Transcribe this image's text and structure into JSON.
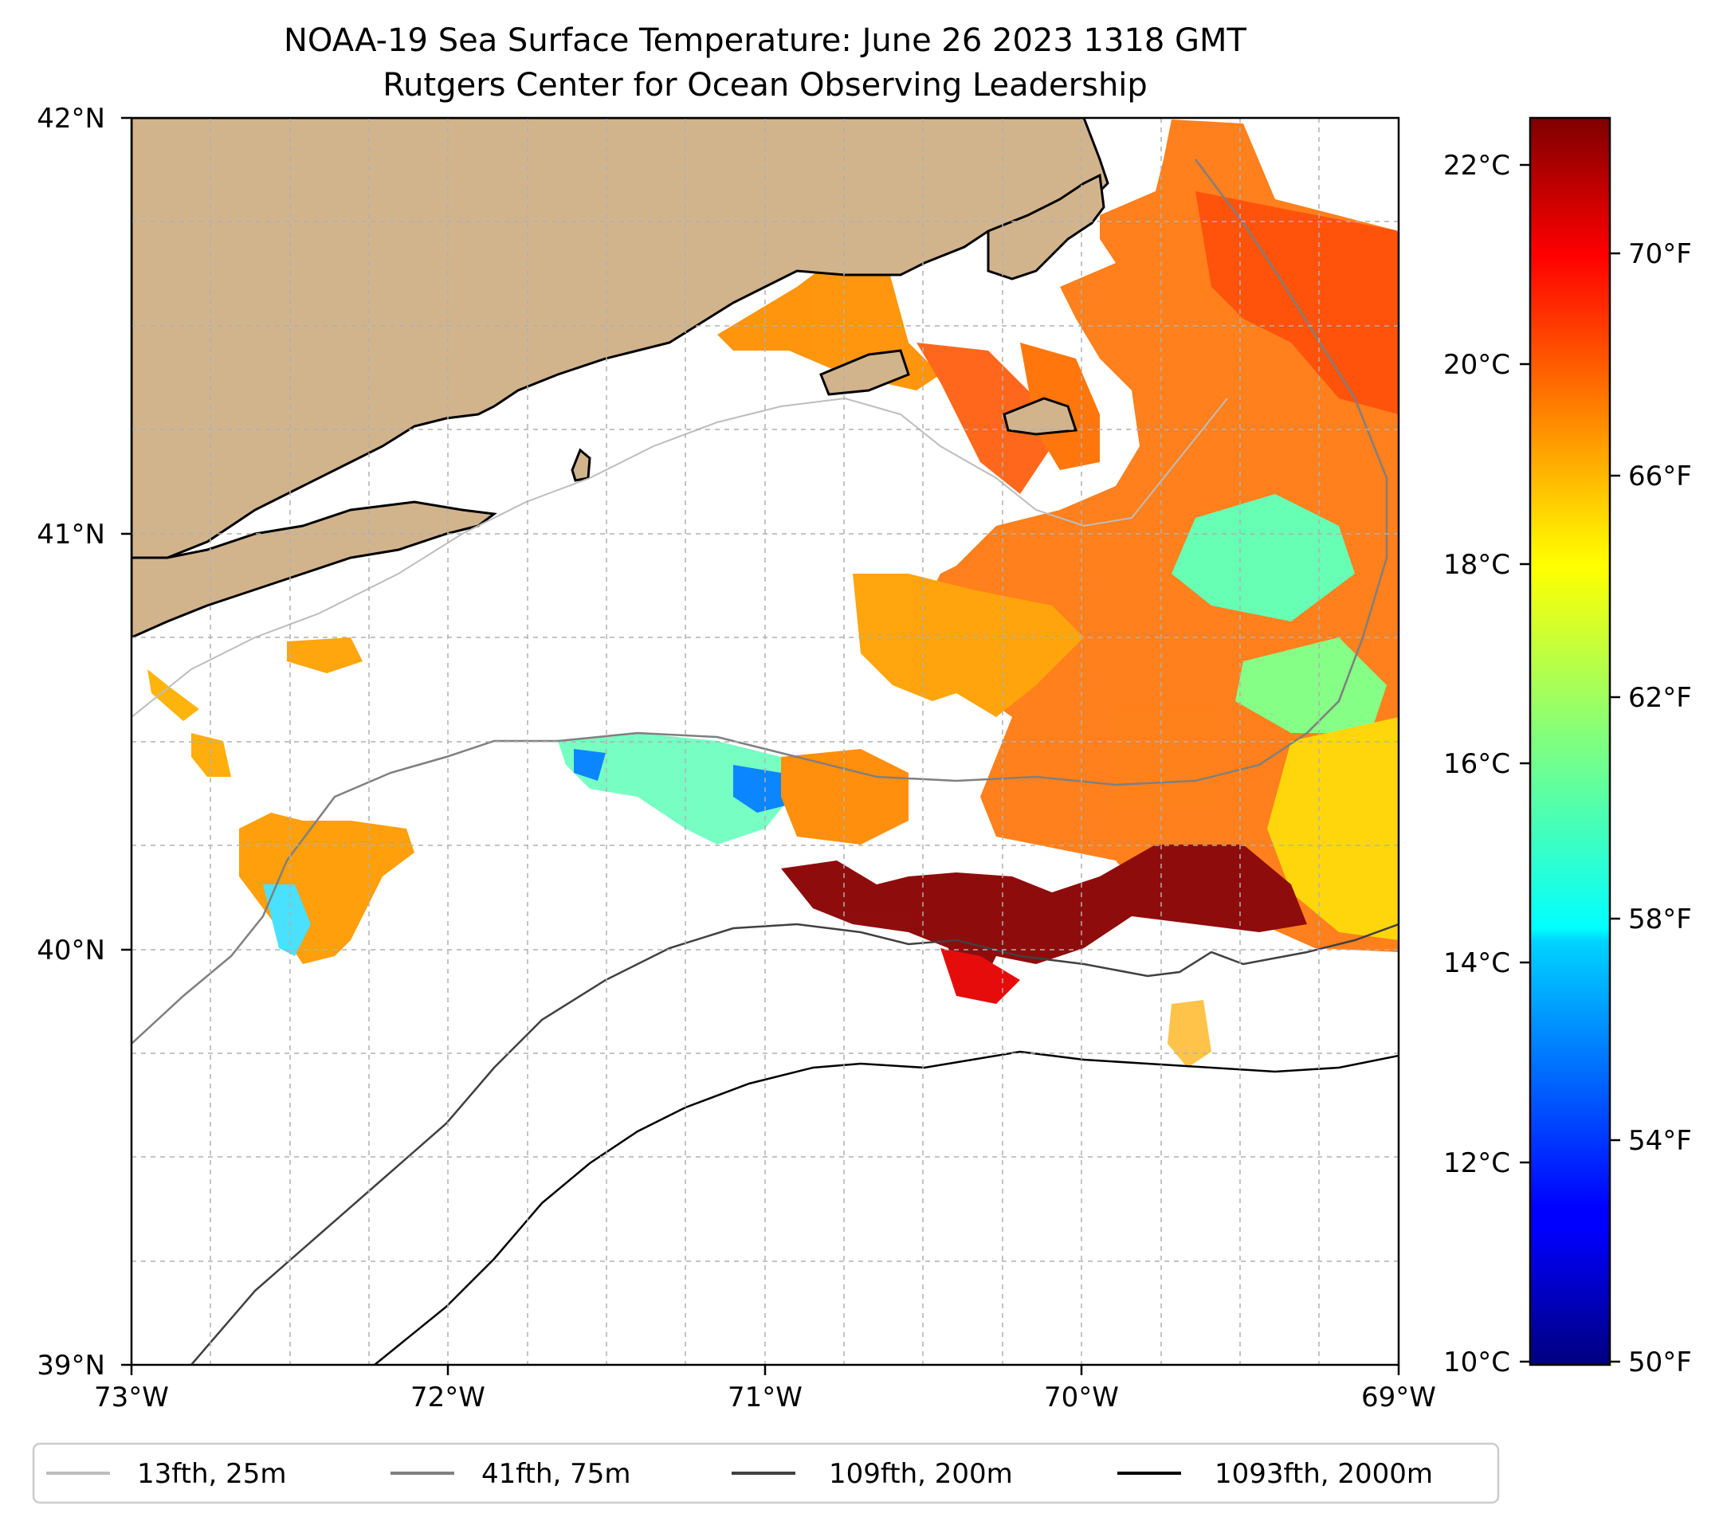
{
  "title": {
    "line1": "NOAA-19 Sea Surface Temperature: June 26 2023 1318 GMT",
    "line2": "Rutgers Center for Ocean Observing Leadership"
  },
  "map": {
    "lon_range": [
      -73,
      -69
    ],
    "lat_range": [
      39,
      42
    ],
    "lon_ticks": [
      {
        "value": -73,
        "label": "73°W"
      },
      {
        "value": -72,
        "label": "72°W"
      },
      {
        "value": -71,
        "label": "71°W"
      },
      {
        "value": -70,
        "label": "70°W"
      },
      {
        "value": -69,
        "label": "69°W"
      }
    ],
    "lat_ticks": [
      {
        "value": 42,
        "label": "42°N"
      },
      {
        "value": 41,
        "label": "41°N"
      },
      {
        "value": 40,
        "label": "40°N"
      },
      {
        "value": 39,
        "label": "39°N"
      }
    ],
    "land_color": "#d2b48c",
    "grid": "dashed"
  },
  "colorbar": {
    "colormap": "jet",
    "celsius_range": [
      10,
      22.5
    ],
    "celsius_ticks": [
      {
        "value": 22,
        "label": "22°C"
      },
      {
        "value": 20,
        "label": "20°C"
      },
      {
        "value": 18,
        "label": "18°C"
      },
      {
        "value": 16,
        "label": "16°C"
      },
      {
        "value": 14,
        "label": "14°C"
      },
      {
        "value": 12,
        "label": "12°C"
      },
      {
        "value": 10,
        "label": "10°C"
      }
    ],
    "fahrenheit_ticks": [
      {
        "value": 70,
        "label": "70°F"
      },
      {
        "value": 66,
        "label": "66°F"
      },
      {
        "value": 62,
        "label": "62°F"
      },
      {
        "value": 58,
        "label": "58°F"
      },
      {
        "value": 54,
        "label": "54°F"
      },
      {
        "value": 50,
        "label": "50°F"
      }
    ]
  },
  "legend": {
    "items": [
      {
        "label": "13fth, 25m",
        "color": "#bdbdbd"
      },
      {
        "label": "41fth, 75m",
        "color": "#7f7f7f"
      },
      {
        "label": "109fth, 200m",
        "color": "#404040"
      },
      {
        "label": "1093fth, 2000m",
        "color": "#000000"
      }
    ]
  }
}
